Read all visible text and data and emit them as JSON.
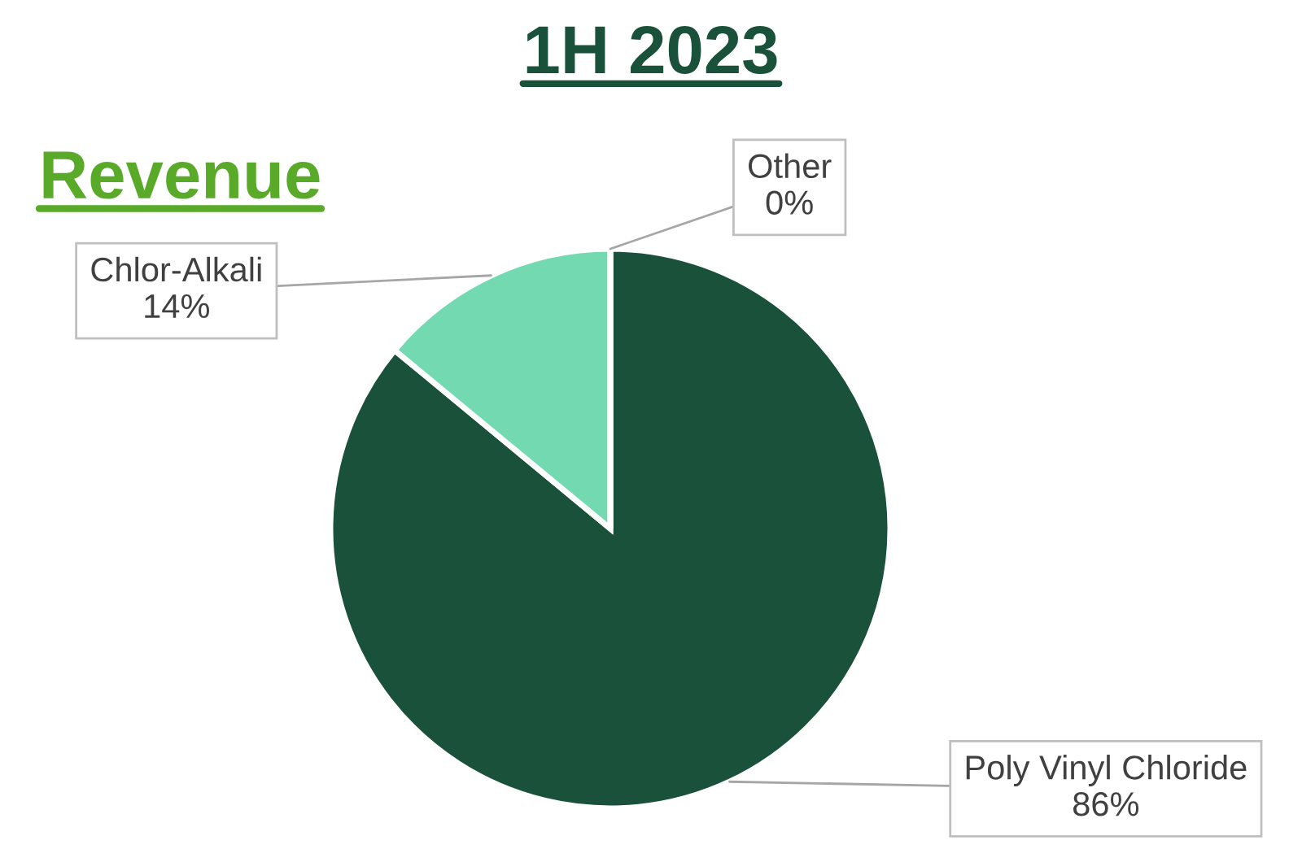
{
  "chart_data": {
    "type": "pie",
    "title": "1H 2023",
    "subtitle": "Revenue",
    "categories": [
      "Poly Vinyl Chloride",
      "Chlor-Alkali",
      "Other"
    ],
    "values": [
      86,
      14,
      0
    ],
    "value_labels": [
      "86%",
      "14%",
      "0%"
    ],
    "colors": [
      "#1a513b",
      "#72d9b0",
      "#a5a5a5"
    ],
    "legend": false
  }
}
